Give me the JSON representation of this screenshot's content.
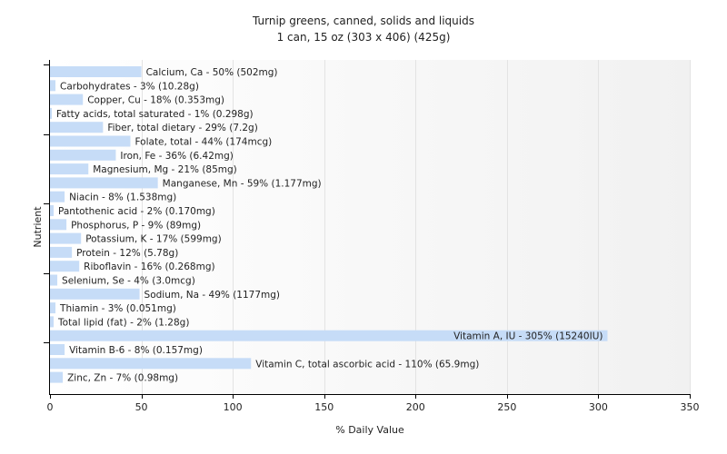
{
  "chart_data": {
    "type": "bar",
    "orientation": "horizontal",
    "title": "Turnip greens, canned, solids and liquids",
    "subtitle": "1 can, 15 oz (303 x 406) (425g)",
    "xlabel": "% Daily Value",
    "ylabel": "Nutrient",
    "xlim": [
      0,
      350
    ],
    "xticks": [
      0,
      50,
      100,
      150,
      200,
      250,
      300,
      350
    ],
    "grid": true,
    "bar_color": "#c6dcf7",
    "categories": [
      "Calcium, Ca",
      "Carbohydrates",
      "Copper, Cu",
      "Fatty acids, total saturated",
      "Fiber, total dietary",
      "Folate, total",
      "Iron, Fe",
      "Magnesium, Mg",
      "Manganese, Mn",
      "Niacin",
      "Pantothenic acid",
      "Phosphorus, P",
      "Potassium, K",
      "Protein",
      "Riboflavin",
      "Selenium, Se",
      "Sodium, Na",
      "Thiamin",
      "Total lipid (fat)",
      "Vitamin A, IU",
      "Vitamin B-6",
      "Vitamin C, total ascorbic acid",
      "Zinc, Zn"
    ],
    "values": [
      50,
      3,
      18,
      1,
      29,
      44,
      36,
      21,
      59,
      8,
      2,
      9,
      17,
      12,
      16,
      4,
      49,
      3,
      2,
      305,
      8,
      110,
      7
    ],
    "labels": [
      "Calcium, Ca - 50% (502mg)",
      "Carbohydrates - 3% (10.28g)",
      "Copper, Cu - 18% (0.353mg)",
      "Fatty acids, total saturated - 1% (0.298g)",
      "Fiber, total dietary - 29% (7.2g)",
      "Folate, total - 44% (174mcg)",
      "Iron, Fe - 36% (6.42mg)",
      "Magnesium, Mg - 21% (85mg)",
      "Manganese, Mn - 59% (1.177mg)",
      "Niacin - 8% (1.538mg)",
      "Pantothenic acid - 2% (0.170mg)",
      "Phosphorus, P - 9% (89mg)",
      "Potassium, K - 17% (599mg)",
      "Protein - 12% (5.78g)",
      "Riboflavin - 16% (0.268mg)",
      "Selenium, Se - 4% (3.0mcg)",
      "Sodium, Na - 49% (1177mg)",
      "Thiamin - 3% (0.051mg)",
      "Total lipid (fat) - 2% (1.28g)",
      "Vitamin A, IU - 305% (15240IU)",
      "Vitamin B-6 - 8% (0.157mg)",
      "Vitamin C, total ascorbic acid - 110% (65.9mg)",
      "Zinc, Zn - 7% (0.98mg)"
    ]
  }
}
